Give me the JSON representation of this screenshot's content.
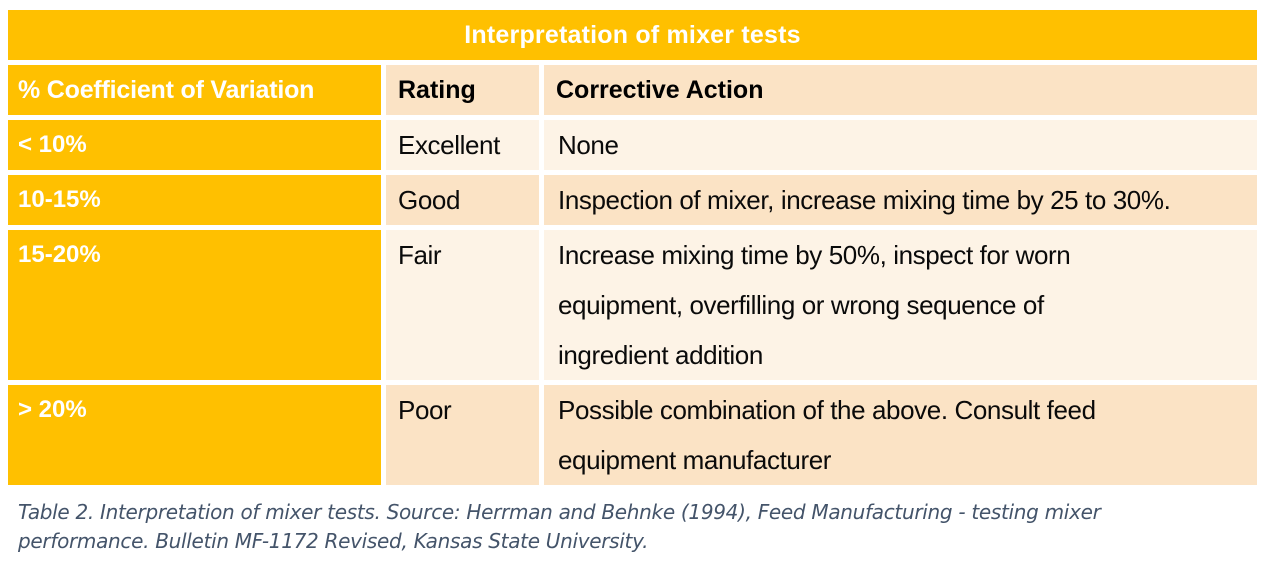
{
  "table": {
    "title": "Interpretation of mixer tests",
    "columns": [
      "% Coefficient of Variation",
      "Rating",
      "Corrective Action"
    ],
    "rows": [
      {
        "cv": "< 10%",
        "rating": "Excellent",
        "action": [
          "None"
        ]
      },
      {
        "cv": "10-15%",
        "rating": "Good",
        "action": [
          "Inspection of mixer, increase mixing time by 25 to 30%."
        ]
      },
      {
        "cv": "15-20%",
        "rating": "Fair",
        "action": [
          "Increase mixing time by 50%, inspect for worn",
          "equipment, overfilling or wrong sequence of",
          "ingredient addition"
        ]
      },
      {
        "cv": "> 20%",
        "rating": "Poor",
        "action": [
          "Possible combination of the above. Consult feed",
          "equipment manufacturer"
        ]
      }
    ]
  },
  "caption_lines": [
    "Table 2.  Interpretation of mixer tests. Source: Herrman and Behnke (1994), Feed Manufacturing - testing mixer",
    "performance. Bulletin MF-1172 Revised, Kansas State University."
  ],
  "colors": {
    "accent_orange": "#FFC000",
    "band_dark": "#FBE3C5",
    "band_light": "#FDF3E6",
    "separator": "#FFFFFF",
    "caption_text": "#44546A",
    "header_text_light": "#FFFFFF",
    "body_text": "#0A0A0A"
  }
}
